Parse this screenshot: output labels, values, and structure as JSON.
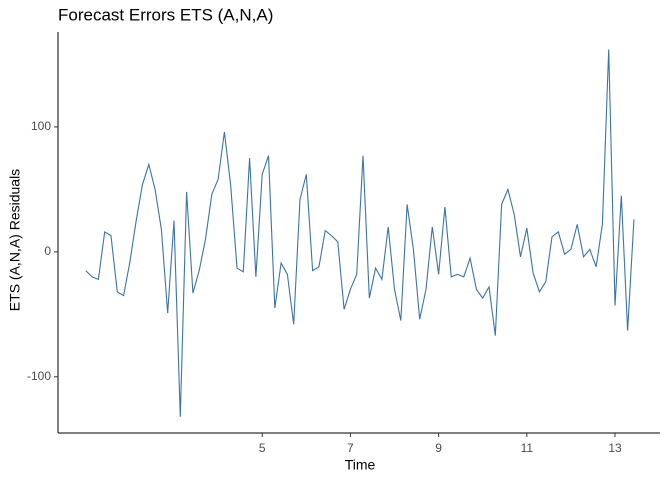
{
  "chart_data": {
    "type": "line",
    "title": "Forecast Errors ETS (A,N,A)",
    "x_label": "Time",
    "y_label": "ETS (A,N,A) Residuals",
    "x": [
      1,
      1.143,
      1.286,
      1.429,
      1.571,
      1.714,
      1.857,
      2,
      2.143,
      2.286,
      2.429,
      2.571,
      2.714,
      2.857,
      3,
      3.143,
      3.286,
      3.429,
      3.571,
      3.714,
      3.857,
      4,
      4.143,
      4.286,
      4.429,
      4.571,
      4.714,
      4.857,
      5,
      5.143,
      5.286,
      5.429,
      5.571,
      5.714,
      5.857,
      6,
      6.143,
      6.286,
      6.429,
      6.571,
      6.714,
      6.857,
      7,
      7.143,
      7.286,
      7.429,
      7.571,
      7.714,
      7.857,
      8,
      8.143,
      8.286,
      8.429,
      8.571,
      8.714,
      8.857,
      9,
      9.143,
      9.286,
      9.429,
      9.571,
      9.714,
      9.857,
      10,
      10.143,
      10.286,
      10.429,
      10.571,
      10.714,
      10.857,
      11,
      11.143,
      11.286,
      11.429,
      11.571,
      11.714,
      11.857,
      12,
      12.143,
      12.286,
      12.429,
      12.571,
      12.714,
      12.857,
      13,
      13.143,
      13.286,
      13.429
    ],
    "series": [
      {
        "name": "Residuals",
        "color": "#3b74a8",
        "values": [
          -15,
          -20,
          -22,
          16,
          13,
          -32,
          -35,
          -8,
          25,
          54,
          70,
          50,
          18,
          -49,
          25,
          -132,
          48,
          -33,
          -15,
          10,
          46,
          58,
          96,
          53,
          -13,
          -16,
          75,
          -20,
          62,
          77,
          -45,
          -9,
          -18,
          -58,
          42,
          62,
          -15,
          -12,
          17,
          13,
          8,
          -46,
          -30,
          -18,
          77,
          -37,
          -13,
          -22,
          20,
          -30,
          -55,
          38,
          2,
          -54,
          -30,
          20,
          -18,
          36,
          -20,
          -18,
          -20,
          -5,
          -30,
          -37,
          -28,
          -67,
          38,
          50,
          30,
          -4,
          19,
          -17,
          -32,
          -24,
          12,
          16,
          -2,
          2,
          22,
          -4,
          2,
          -12,
          22,
          162,
          -43,
          45,
          -63,
          26
        ]
      }
    ],
    "xlim": [
      0.37,
      14.02
    ],
    "xticks": [
      5,
      7,
      9,
      11,
      13
    ],
    "ylim": [
      -145,
      176
    ],
    "yticks": [
      -100,
      0,
      100
    ],
    "grid": false
  }
}
